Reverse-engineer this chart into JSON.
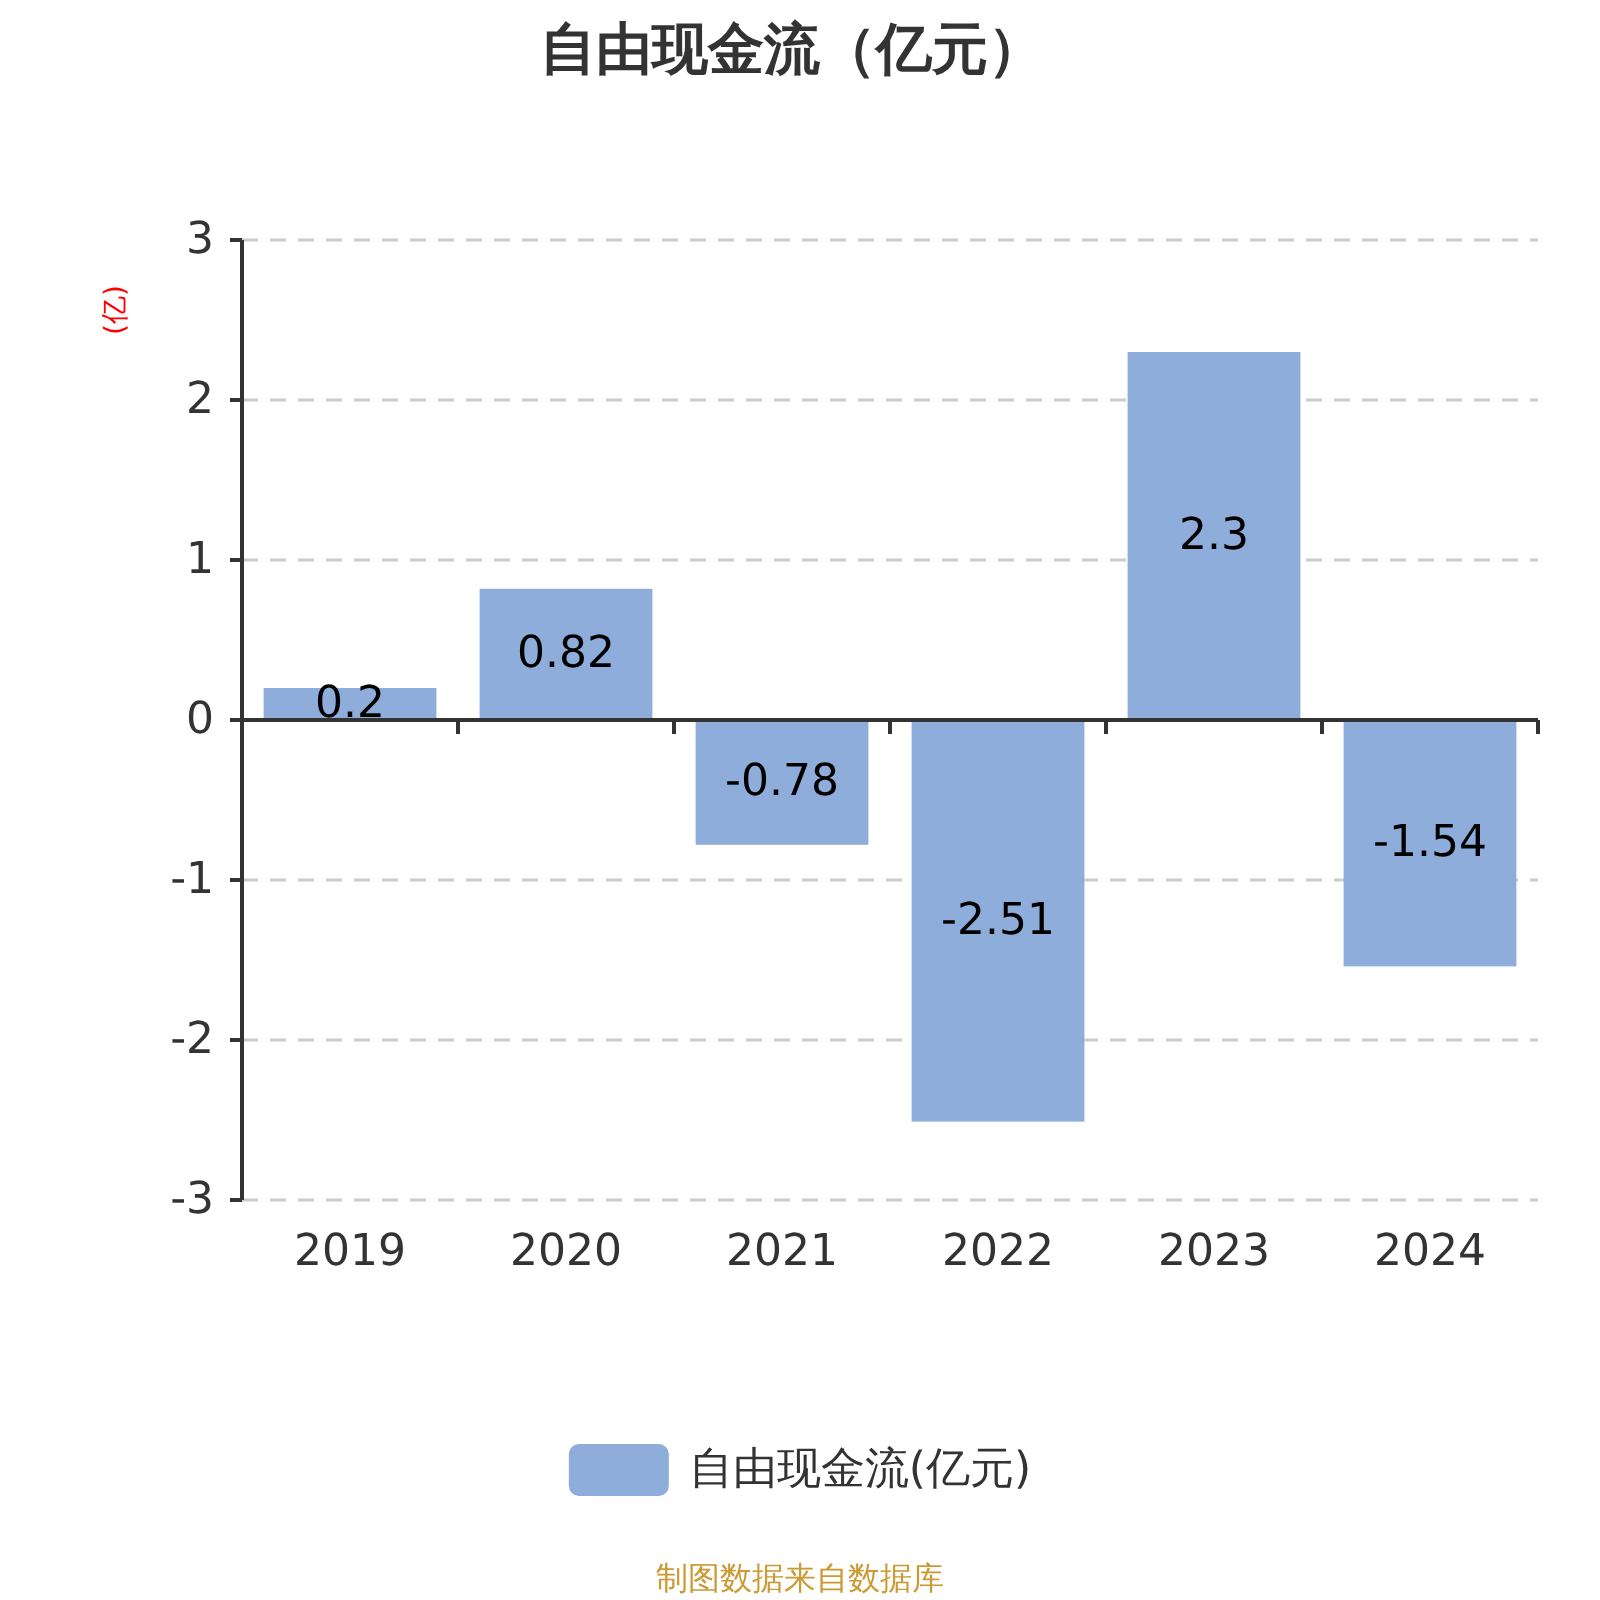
{
  "chart_data": {
    "type": "bar",
    "title": "自由现金流（亿元）",
    "ylabel": "(亿)",
    "categories": [
      "2019",
      "2020",
      "2021",
      "2022",
      "2023",
      "2024"
    ],
    "series": [
      {
        "name": "自由现金流(亿元)",
        "color": "#8eaddb",
        "values": [
          0.2,
          0.82,
          -0.78,
          -2.51,
          2.3,
          -1.54
        ]
      }
    ],
    "ylim": [
      -3,
      3
    ],
    "yticks": [
      -3,
      -2,
      -1,
      0,
      1,
      2,
      3
    ],
    "grid": "y",
    "legend": "bottom",
    "data_labels": true,
    "annotations": [
      "制图数据来自数据库"
    ]
  }
}
